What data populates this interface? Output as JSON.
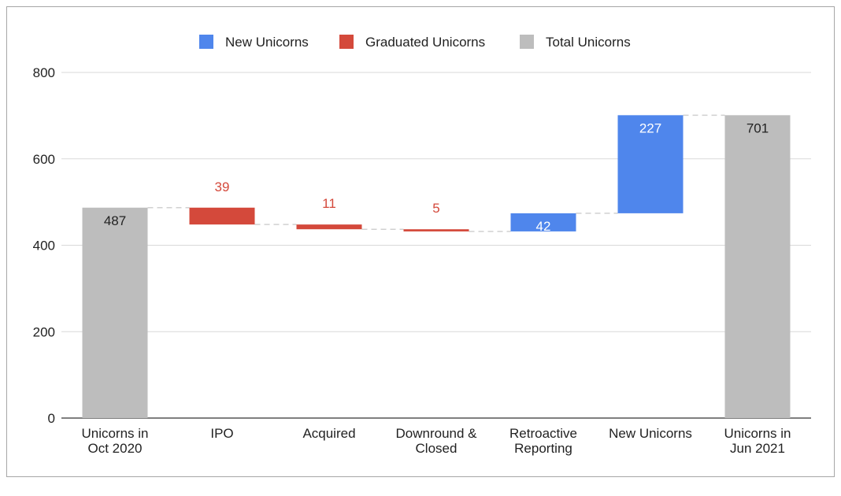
{
  "chart_data": {
    "type": "bar",
    "subtype": "waterfall",
    "categories": [
      [
        "Unicorns in",
        "Oct 2020"
      ],
      [
        "IPO"
      ],
      [
        "Acquired"
      ],
      [
        "Downround &",
        "Closed"
      ],
      [
        "Retroactive",
        "Reporting"
      ],
      [
        "New Unicorns"
      ],
      [
        "Unicorns in",
        "Jun 2021"
      ]
    ],
    "values": [
      487,
      -39,
      -11,
      -5,
      42,
      227,
      701
    ],
    "kinds": [
      "total",
      "decrease",
      "decrease",
      "decrease",
      "increase",
      "increase",
      "total"
    ],
    "labels": [
      "487",
      "39",
      "11",
      "5",
      "42",
      "227",
      "701"
    ],
    "legend": [
      {
        "name": "New Unicorns",
        "color": "#4f86ec"
      },
      {
        "name": "Graduated Unicorns",
        "color": "#d4493b"
      },
      {
        "name": "Total Unicorns",
        "color": "#bdbdbd"
      }
    ],
    "legend_position": "top",
    "ylim": [
      0,
      800
    ],
    "yticks": [
      0,
      200,
      400,
      600,
      800
    ],
    "grid": true,
    "colors": {
      "increase": "#4f86ec",
      "decrease": "#d4493b",
      "total": "#bdbdbd",
      "decrease_label": "#d4493b",
      "inside_label_dark": "#222222",
      "inside_label_light": "#ffffff"
    }
  }
}
